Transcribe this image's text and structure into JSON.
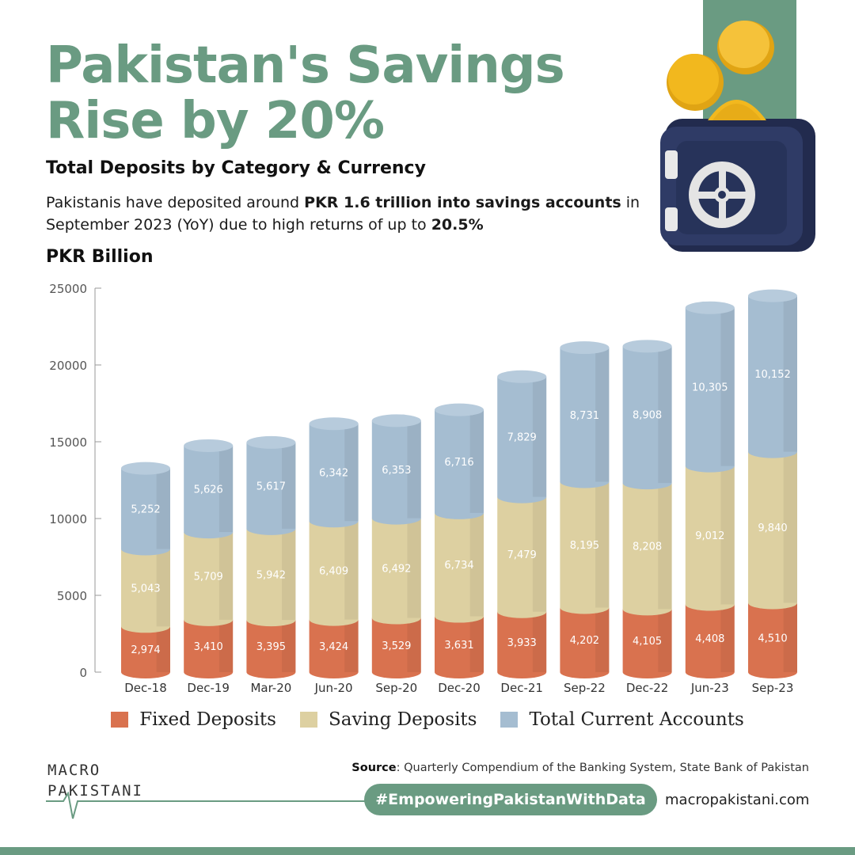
{
  "header": {
    "title_line1": "Pakistan's Savings",
    "title_line2": "Rise by 20%",
    "subtitle": "Total Deposits by Category & Currency",
    "desc_part1": "Pakistanis have deposited around ",
    "desc_bold1": "PKR 1.6 trillion into savings accounts",
    "desc_part2": " in September 2023 (YoY) due to high returns of up to ",
    "desc_bold2": "20.5%",
    "unit_label": "PKR Billion"
  },
  "chart_data": {
    "type": "bar",
    "stacked": true,
    "categories": [
      "Dec-18",
      "Dec-19",
      "Mar-20",
      "Jun-20",
      "Sep-20",
      "Dec-20",
      "Dec-21",
      "Sep-22",
      "Dec-22",
      "Jun-23",
      "Sep-23"
    ],
    "series": [
      {
        "name": "Fixed Deposits",
        "color": "#d9724f",
        "values": [
          2974,
          3410,
          3395,
          3424,
          3529,
          3631,
          3933,
          4202,
          4105,
          4408,
          4510
        ],
        "labels": [
          "2,974",
          "3,410",
          "3,395",
          "3,424",
          "3,529",
          "3,631",
          "3,933",
          "4,202",
          "4,105",
          "4,408",
          "4,510"
        ]
      },
      {
        "name": "Saving Deposits",
        "color": "#ddd0a1",
        "values": [
          5043,
          5709,
          5942,
          6409,
          6492,
          6734,
          7479,
          8195,
          8208,
          9012,
          9840
        ],
        "labels": [
          "5,043",
          "5,709",
          "5,942",
          "6,409",
          "6,492",
          "6,734",
          "7,479",
          "8,195",
          "8,208",
          "9,012",
          "9,840"
        ]
      },
      {
        "name": "Total Current Accounts",
        "color": "#a5bdd1",
        "values": [
          5252,
          5626,
          5617,
          6342,
          6353,
          6716,
          7829,
          8731,
          8908,
          10305,
          10152
        ],
        "labels": [
          "5,252",
          "5,626",
          "5,617",
          "6,342",
          "6,353",
          "6,716",
          "7,829",
          "8,731",
          "8,908",
          "10,305",
          "10,152"
        ]
      }
    ],
    "ylim": [
      0,
      25000
    ],
    "yticks": [
      0,
      5000,
      10000,
      15000,
      20000,
      25000
    ],
    "ytick_labels": [
      "0",
      "5000",
      "10000",
      "15000",
      "20000",
      "25000"
    ],
    "legend_position": "bottom",
    "grid": false
  },
  "footer": {
    "logo_line1": "MACRO",
    "logo_line2": "PAKISTANI",
    "source_label": "Source",
    "source_text": ": Quarterly Compendium of the Banking System, State Bank of Pakistan",
    "hashtag": "#EmpoweringPakistanWithData",
    "website": "macropakistani.com"
  },
  "colors": {
    "accent": "#6a9b82",
    "safe_body": "#2f3b66",
    "coin": "#f2b81e"
  },
  "icons": {
    "illustration": "coin-safe-icon"
  }
}
